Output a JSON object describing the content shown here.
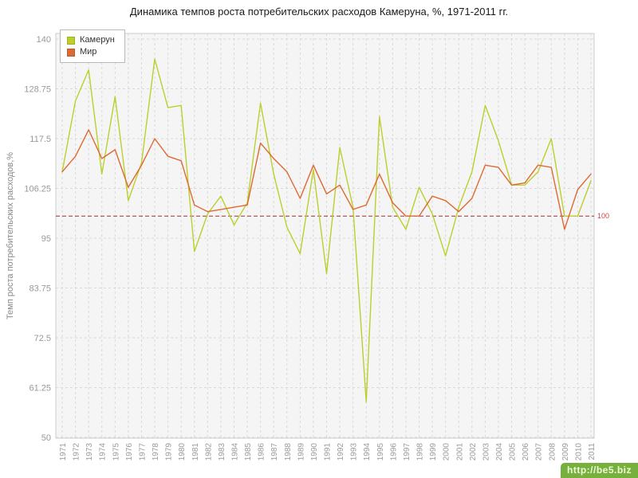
{
  "title": "Динамика темпов роста потребительских расходов Камеруна, %, 1971-2011 гг.",
  "watermark": "http://be5.biz",
  "chart_data": {
    "type": "line",
    "title": "Динамика темпов роста потребительских расходов Камеруна, %, 1971-2011 гг.",
    "ylabel": "Темп роста потребительских расходов,%",
    "xlabel": "",
    "ylim": [
      50,
      140
    ],
    "yticks": [
      50,
      61.25,
      72.5,
      83.75,
      95,
      106.25,
      117.5,
      128.75,
      140
    ],
    "grid": true,
    "legend_position": "top-left",
    "reference_line": {
      "value": 100,
      "label": "100",
      "line_color": "#993333",
      "label_color": "#cc4444"
    },
    "plot_bg": "#f5f5f5",
    "grid_color": "#d9d9d9",
    "border_color": "#cccccc",
    "tick_color": "#999999",
    "x": [
      1971,
      1972,
      1973,
      1974,
      1975,
      1976,
      1977,
      1978,
      1979,
      1980,
      1981,
      1982,
      1983,
      1984,
      1985,
      1986,
      1987,
      1988,
      1989,
      1990,
      1991,
      1992,
      1993,
      1994,
      1995,
      1996,
      1997,
      1998,
      1999,
      2000,
      2001,
      2002,
      2003,
      2004,
      2005,
      2006,
      2007,
      2008,
      2009,
      2010,
      2011
    ],
    "series": [
      {
        "name": "Камерун",
        "color": "#bccf2c",
        "values": [
          110,
          126,
          133,
          109.5,
          127,
          103.5,
          112,
          135.5,
          124.5,
          125,
          92,
          100.5,
          104.5,
          98,
          103,
          125.5,
          109.5,
          97.5,
          91.5,
          110.5,
          87,
          115.5,
          102,
          58,
          122.5,
          102,
          97,
          106.5,
          100.5,
          91,
          102,
          110,
          125,
          117,
          107,
          107,
          110,
          117.5,
          100,
          100,
          108
        ]
      },
      {
        "name": "Мир",
        "color": "#dd6a32",
        "values": [
          110,
          113.5,
          119.5,
          113,
          115,
          106.5,
          111.5,
          117.5,
          113.5,
          112.5,
          102.5,
          101,
          101.5,
          102,
          102.5,
          116.5,
          113,
          110,
          104,
          111.5,
          105,
          107,
          101.5,
          102.5,
          109.5,
          103,
          100,
          100,
          104.5,
          103.5,
          101,
          104,
          111.5,
          111,
          107,
          107.5,
          111.5,
          111,
          97,
          106,
          109.5
        ]
      }
    ]
  }
}
